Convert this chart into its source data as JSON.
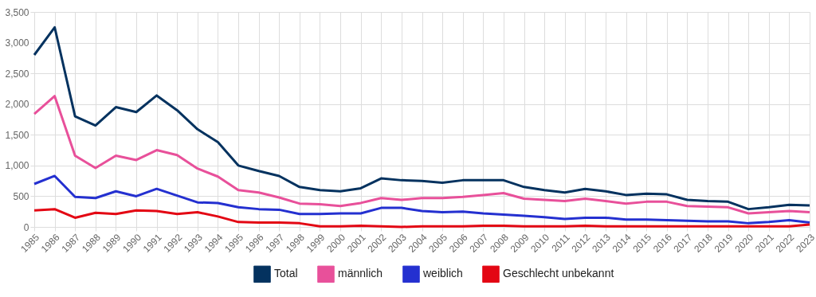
{
  "chart_data": {
    "type": "line",
    "categories": [
      "1985",
      "1986",
      "1987",
      "1988",
      "1989",
      "1990",
      "1991",
      "1992",
      "1993",
      "1994",
      "1995",
      "1996",
      "1997",
      "1998",
      "1999",
      "2000",
      "2001",
      "2002",
      "2003",
      "2004",
      "2005",
      "2006",
      "2007",
      "2008",
      "2009",
      "2010",
      "2011",
      "2012",
      "2013",
      "2014",
      "2015",
      "2016",
      "2017",
      "2018",
      "2019",
      "2020",
      "2021",
      "2022",
      "2023"
    ],
    "series": [
      {
        "name": "Total",
        "color": "#04325f",
        "values": [
          2800,
          3250,
          1800,
          1650,
          1950,
          1870,
          2140,
          1900,
          1590,
          1380,
          1000,
          910,
          830,
          650,
          600,
          580,
          630,
          790,
          760,
          750,
          720,
          760,
          760,
          760,
          650,
          600,
          560,
          620,
          580,
          520,
          540,
          530,
          440,
          420,
          410,
          290,
          320,
          360,
          350
        ]
      },
      {
        "name": "männlich",
        "color": "#e8509a",
        "values": [
          1840,
          2130,
          1160,
          960,
          1160,
          1090,
          1250,
          1170,
          950,
          820,
          600,
          560,
          480,
          380,
          370,
          340,
          390,
          470,
          440,
          470,
          470,
          490,
          520,
          550,
          460,
          440,
          420,
          460,
          420,
          380,
          410,
          410,
          340,
          330,
          320,
          220,
          240,
          260,
          240
        ]
      },
      {
        "name": "weiblich",
        "color": "#2430d0",
        "values": [
          700,
          830,
          490,
          470,
          580,
          500,
          620,
          510,
          400,
          390,
          320,
          290,
          280,
          210,
          210,
          220,
          220,
          310,
          310,
          260,
          240,
          250,
          220,
          200,
          180,
          160,
          130,
          150,
          150,
          120,
          120,
          110,
          100,
          90,
          90,
          60,
          80,
          110,
          70
        ]
      },
      {
        "name": "Geschlecht unbekannt",
        "color": "#e30613",
        "values": [
          270,
          290,
          150,
          230,
          210,
          270,
          260,
          210,
          240,
          170,
          80,
          70,
          70,
          60,
          10,
          10,
          20,
          10,
          0,
          10,
          10,
          10,
          20,
          20,
          10,
          10,
          10,
          20,
          10,
          10,
          10,
          10,
          10,
          10,
          10,
          10,
          10,
          10,
          40
        ]
      }
    ],
    "ylim": [
      0,
      3500
    ],
    "yticks": [
      0,
      500,
      {
        "value": 1000,
        "label": "1,000"
      },
      {
        "value": 1500,
        "label": "1,500"
      },
      {
        "value": 2000,
        "label": "2,000"
      },
      {
        "value": 2500,
        "label": "2,500"
      },
      {
        "value": 3000,
        "label": "3,000"
      },
      {
        "value": 3500,
        "label": "3,500"
      }
    ],
    "grid": true,
    "legend": "bottom",
    "marker": "none",
    "line_style": "solid"
  }
}
